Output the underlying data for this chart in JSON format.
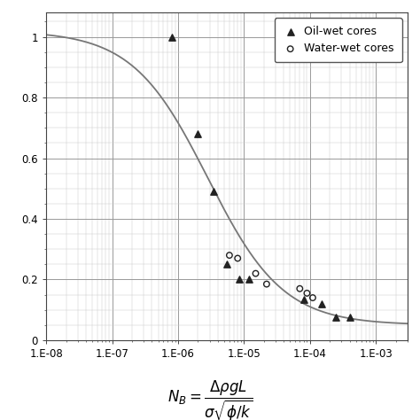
{
  "title": "",
  "xlim": [
    1e-08,
    0.003
  ],
  "ylim": [
    0,
    1.08
  ],
  "yticks": [
    0,
    0.2,
    0.4,
    0.6,
    0.8,
    1
  ],
  "ytick_labels": [
    "0",
    "0.2",
    "0.4",
    "0.6",
    "0.8",
    "1"
  ],
  "xtick_vals": [
    1e-08,
    1e-07,
    1e-06,
    1e-05,
    0.0001,
    0.001
  ],
  "xtick_labels": [
    "1.E-08",
    "1.E-07",
    "1.E-06",
    "1.E-05",
    "1.E-04",
    "1.E-03"
  ],
  "oil_wet_x": [
    8e-07,
    2e-06,
    3.5e-06,
    5.5e-06,
    8.5e-06,
    1.2e-05,
    8e-05,
    0.00015,
    0.00025,
    0.0004
  ],
  "oil_wet_y": [
    1.0,
    0.68,
    0.49,
    0.25,
    0.2,
    0.2,
    0.135,
    0.12,
    0.075,
    0.075
  ],
  "water_wet_x": [
    6e-06,
    8e-06,
    1.5e-05,
    2.2e-05,
    7e-05,
    9e-05,
    0.00011
  ],
  "water_wet_y": [
    0.28,
    0.27,
    0.22,
    0.185,
    0.17,
    0.155,
    0.14
  ],
  "curve_color": "#777777",
  "marker_oil_color": "#222222",
  "marker_water_color": "#222222",
  "background_color": "#ffffff",
  "major_grid_color": "#999999",
  "minor_grid_color": "#cccccc",
  "legend_fontsize": 9,
  "tick_fontsize": 8.5,
  "label_fontsize": 12
}
